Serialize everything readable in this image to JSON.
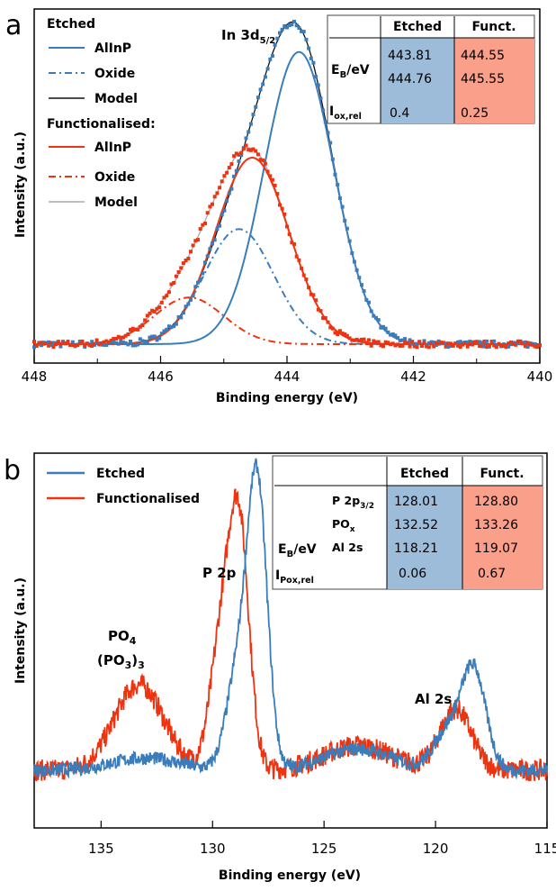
{
  "colors": {
    "etched": "#3a7dba",
    "functionalised": "#ee3311",
    "model_etched": "#111111",
    "model_functionalised": "#aaaaaa",
    "table_etched_bg": "#9dbcd9",
    "table_funct_bg": "#f99f8a"
  },
  "chart_data": [
    {
      "panel": "a",
      "type": "line",
      "xlabel": "Binding energy (eV)",
      "ylabel": "Intensity (a.u.)",
      "xlim": [
        448,
        440
      ],
      "x_reversed": true,
      "xticks": [
        "448",
        "446",
        "444",
        "442",
        "440"
      ],
      "peak_label": "In 3d",
      "peak_label_sub": "5/2",
      "legend": {
        "group1_title": "Etched",
        "group1": [
          "AlInP",
          "Oxide",
          "Model"
        ],
        "group2_title": "Functionalised:",
        "group2": [
          "AlInP",
          "Oxide",
          "Model"
        ]
      },
      "series": [
        {
          "name": "Etched AlInP",
          "center": 443.81,
          "height": 0.94,
          "width": 0.55
        },
        {
          "name": "Etched Oxide",
          "center": 444.76,
          "height": 0.37,
          "width": 0.55
        },
        {
          "name": "Functionalised AlInP",
          "center": 444.55,
          "height": 0.6,
          "width": 0.58
        },
        {
          "name": "Functionalised Oxide",
          "center": 445.55,
          "height": 0.15,
          "width": 0.55
        }
      ],
      "table": {
        "col_headers": [
          "Etched",
          "Funct."
        ],
        "row1_label": "E",
        "row1_label_sub": "B",
        "row1_label_tail": "/eV",
        "row2_label": "I",
        "row2_label_sub": "ox,rel",
        "etched_EB": [
          "443.81",
          "444.76"
        ],
        "funct_EB": [
          "444.55",
          "445.55"
        ],
        "etched_I": "0.4",
        "funct_I": "0.25"
      }
    },
    {
      "panel": "b",
      "type": "line",
      "xlabel": "Binding energy (eV)",
      "ylabel": "Intensity (a.u.)",
      "xlim": [
        138,
        115
      ],
      "x_reversed": true,
      "xticks": [
        "135",
        "130",
        "125",
        "120",
        "115"
      ],
      "legend": [
        "Etched",
        "Functionalised"
      ],
      "annotations": {
        "p2p": "P 2p",
        "po4_line1": "PO",
        "po4_line1_sub": "4",
        "po4_line2": "(PO",
        "po4_line2_sub": "3",
        "po4_line2_tail": ")",
        "po4_line2_sub2": "3",
        "al2s": "Al 2s"
      },
      "series": [
        {
          "name": "Etched",
          "peaks": [
            [
              128.0,
              0.93,
              0.45
            ],
            [
              128.9,
              0.3,
              0.5
            ],
            [
              118.3,
              0.33,
              0.55
            ],
            [
              119.5,
              0.12,
              0.6
            ],
            [
              123.5,
              0.07,
              1.5
            ],
            [
              133.0,
              0.04,
              1.5
            ]
          ]
        },
        {
          "name": "Functionalised",
          "peaks": [
            [
              128.8,
              0.76,
              0.45
            ],
            [
              129.6,
              0.42,
              0.5
            ],
            [
              133.3,
              0.28,
              1.1
            ],
            [
              119.1,
              0.2,
              0.7
            ],
            [
              123.5,
              0.08,
              1.5
            ]
          ]
        }
      ],
      "table": {
        "col_headers": [
          "Etched",
          "Funct."
        ],
        "row_labels": [
          "P 2p",
          "PO",
          "Al 2s"
        ],
        "row_label_subs": [
          "3/2",
          "x",
          ""
        ],
        "left_label": "E",
        "left_label_sub": "B",
        "left_label_tail": "/eV",
        "bottom_label": "I",
        "bottom_label_sub": "Pox,rel",
        "etched_EB": [
          "128.01",
          "132.52",
          "118.21"
        ],
        "funct_EB": [
          "128.80",
          "133.26",
          "119.07"
        ],
        "etched_I": "0.06",
        "funct_I": "0.67"
      }
    }
  ]
}
